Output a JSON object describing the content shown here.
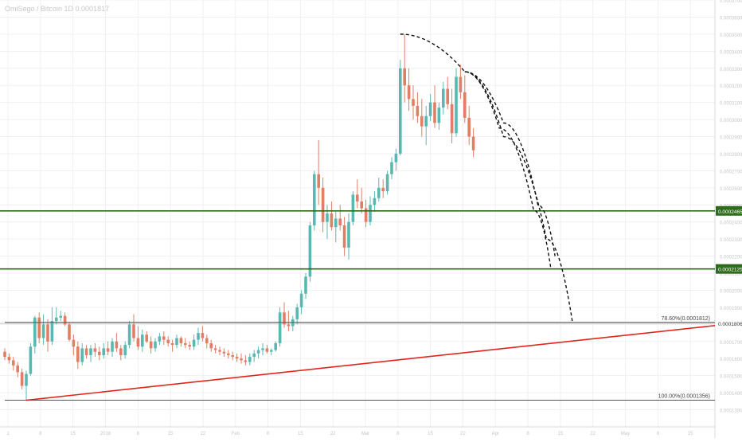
{
  "header": {
    "symbol_title": "OmiSego / Bitcoin 1D 0.0001817"
  },
  "colors": {
    "bull": "#59b9b2",
    "bear": "#e07f66",
    "support": "#2e6b1b",
    "trendline": "#e1261d",
    "fib": "#555555",
    "grid": "#f0f0f0",
    "price_line": "#c4c4c4",
    "projection": "#111111"
  },
  "chart_data": {
    "type": "candlestick",
    "title": "",
    "xlabel": "",
    "ylabel": "",
    "ylim": [
      0.00012,
      0.00037
    ],
    "y_tick_step": 1e-05,
    "grid": true,
    "x_tick_labels": [
      "1",
      "8",
      "15",
      "2018",
      "8",
      "15",
      "22",
      "Feb",
      "8",
      "15",
      "22",
      "Mar",
      "8",
      "15",
      "22",
      "Apr",
      "8",
      "15",
      "22",
      "May",
      "8",
      "15"
    ],
    "candles": [
      {
        "o": 0.000164,
        "h": 0.000166,
        "l": 0.000159,
        "c": 0.000161
      },
      {
        "o": 0.000161,
        "h": 0.000163,
        "l": 0.000157,
        "c": 0.000159
      },
      {
        "o": 0.000159,
        "h": 0.000161,
        "l": 0.000153,
        "c": 0.000156
      },
      {
        "o": 0.000156,
        "h": 0.000158,
        "l": 0.000149,
        "c": 0.000152
      },
      {
        "o": 0.000152,
        "h": 0.000154,
        "l": 0.000142,
        "c": 0.000144
      },
      {
        "o": 0.000144,
        "h": 0.000153,
        "l": 0.0001356,
        "c": 0.000151
      },
      {
        "o": 0.000151,
        "h": 0.000169,
        "l": 0.00015,
        "c": 0.000167
      },
      {
        "o": 0.000167,
        "h": 0.000185,
        "l": 0.000163,
        "c": 0.000184
      },
      {
        "o": 0.000184,
        "h": 0.000187,
        "l": 0.000169,
        "c": 0.000172
      },
      {
        "o": 0.000172,
        "h": 0.000186,
        "l": 0.000168,
        "c": 0.00018
      },
      {
        "o": 0.00018,
        "h": 0.000183,
        "l": 0.000164,
        "c": 0.00017
      },
      {
        "o": 0.00017,
        "h": 0.00019,
        "l": 0.000168,
        "c": 0.000182
      },
      {
        "o": 0.000182,
        "h": 0.00019,
        "l": 0.00018,
        "c": 0.000184
      },
      {
        "o": 0.000184,
        "h": 0.000188,
        "l": 0.000182,
        "c": 0.000185
      },
      {
        "o": 0.000185,
        "h": 0.000187,
        "l": 0.000179,
        "c": 0.00018
      },
      {
        "o": 0.00018,
        "h": 0.000181,
        "l": 0.00017,
        "c": 0.000171
      },
      {
        "o": 0.000171,
        "h": 0.000174,
        "l": 0.000162,
        "c": 0.000167
      },
      {
        "o": 0.000167,
        "h": 0.00017,
        "l": 0.000154,
        "c": 0.000158
      },
      {
        "o": 0.000158,
        "h": 0.000169,
        "l": 0.000156,
        "c": 0.000166
      },
      {
        "o": 0.000166,
        "h": 0.000168,
        "l": 0.00016,
        "c": 0.000162
      },
      {
        "o": 0.000162,
        "h": 0.000168,
        "l": 0.000158,
        "c": 0.000166
      },
      {
        "o": 0.000166,
        "h": 0.000169,
        "l": 0.000161,
        "c": 0.000164
      },
      {
        "o": 0.000164,
        "h": 0.000167,
        "l": 0.000159,
        "c": 0.000162
      },
      {
        "o": 0.000162,
        "h": 0.000169,
        "l": 0.00016,
        "c": 0.000166
      },
      {
        "o": 0.000166,
        "h": 0.00017,
        "l": 0.000162,
        "c": 0.000164
      },
      {
        "o": 0.000164,
        "h": 0.000172,
        "l": 0.000161,
        "c": 0.00017
      },
      {
        "o": 0.00017,
        "h": 0.000175,
        "l": 0.000164,
        "c": 0.000166
      },
      {
        "o": 0.000166,
        "h": 0.000168,
        "l": 0.000159,
        "c": 0.000162
      },
      {
        "o": 0.000162,
        "h": 0.00017,
        "l": 0.00016,
        "c": 0.000168
      },
      {
        "o": 0.000168,
        "h": 0.000182,
        "l": 0.000166,
        "c": 0.00018
      },
      {
        "o": 0.00018,
        "h": 0.000186,
        "l": 0.00017,
        "c": 0.000172
      },
      {
        "o": 0.000172,
        "h": 0.000179,
        "l": 0.000165,
        "c": 0.000167
      },
      {
        "o": 0.000167,
        "h": 0.000177,
        "l": 0.000164,
        "c": 0.000174
      },
      {
        "o": 0.000174,
        "h": 0.000176,
        "l": 0.000169,
        "c": 0.00017
      },
      {
        "o": 0.00017,
        "h": 0.000173,
        "l": 0.000163,
        "c": 0.000166
      },
      {
        "o": 0.000166,
        "h": 0.000172,
        "l": 0.000164,
        "c": 0.00017
      },
      {
        "o": 0.00017,
        "h": 0.000175,
        "l": 0.000168,
        "c": 0.000173
      },
      {
        "o": 0.000173,
        "h": 0.000176,
        "l": 0.000168,
        "c": 0.000171
      },
      {
        "o": 0.000171,
        "h": 0.000173,
        "l": 0.000167,
        "c": 0.000169
      },
      {
        "o": 0.000169,
        "h": 0.000171,
        "l": 0.000164,
        "c": 0.000168
      },
      {
        "o": 0.000168,
        "h": 0.000174,
        "l": 0.000166,
        "c": 0.000172
      },
      {
        "o": 0.000172,
        "h": 0.000173,
        "l": 0.000167,
        "c": 0.000169
      },
      {
        "o": 0.000169,
        "h": 0.000172,
        "l": 0.000166,
        "c": 0.000168
      },
      {
        "o": 0.000168,
        "h": 0.00017,
        "l": 0.000165,
        "c": 0.000167
      },
      {
        "o": 0.000167,
        "h": 0.000174,
        "l": 0.000165,
        "c": 0.000171
      },
      {
        "o": 0.000171,
        "h": 0.000178,
        "l": 0.000168,
        "c": 0.000175
      },
      {
        "o": 0.000175,
        "h": 0.000179,
        "l": 0.00017,
        "c": 0.000172
      },
      {
        "o": 0.000172,
        "h": 0.000174,
        "l": 0.000166,
        "c": 0.000169
      },
      {
        "o": 0.000169,
        "h": 0.000171,
        "l": 0.000164,
        "c": 0.000166
      },
      {
        "o": 0.000166,
        "h": 0.000168,
        "l": 0.000163,
        "c": 0.000165
      },
      {
        "o": 0.000165,
        "h": 0.000167,
        "l": 0.000162,
        "c": 0.000164
      },
      {
        "o": 0.000164,
        "h": 0.000166,
        "l": 0.000161,
        "c": 0.000163
      },
      {
        "o": 0.000163,
        "h": 0.000165,
        "l": 0.00016,
        "c": 0.000162
      },
      {
        "o": 0.000162,
        "h": 0.000164,
        "l": 0.000159,
        "c": 0.000161
      },
      {
        "o": 0.000161,
        "h": 0.000163,
        "l": 0.000158,
        "c": 0.00016
      },
      {
        "o": 0.00016,
        "h": 0.000163,
        "l": 0.000157,
        "c": 0.000159
      },
      {
        "o": 0.000159,
        "h": 0.000162,
        "l": 0.000156,
        "c": 0.000158
      },
      {
        "o": 0.000158,
        "h": 0.000163,
        "l": 0.000156,
        "c": 0.000161
      },
      {
        "o": 0.000161,
        "h": 0.000165,
        "l": 0.000158,
        "c": 0.000163
      },
      {
        "o": 0.000163,
        "h": 0.000167,
        "l": 0.00016,
        "c": 0.000165
      },
      {
        "o": 0.000165,
        "h": 0.000169,
        "l": 0.000162,
        "c": 0.000166
      },
      {
        "o": 0.000166,
        "h": 0.000168,
        "l": 0.000163,
        "c": 0.000164
      },
      {
        "o": 0.000164,
        "h": 0.000166,
        "l": 0.000162,
        "c": 0.000165
      },
      {
        "o": 0.000165,
        "h": 0.00017,
        "l": 0.000164,
        "c": 0.000169
      },
      {
        "o": 0.000169,
        "h": 0.00019,
        "l": 0.000167,
        "c": 0.000187
      },
      {
        "o": 0.000187,
        "h": 0.000193,
        "l": 0.000178,
        "c": 0.00018
      },
      {
        "o": 0.00018,
        "h": 0.000188,
        "l": 0.000176,
        "c": 0.000179
      },
      {
        "o": 0.000179,
        "h": 0.000185,
        "l": 0.000176,
        "c": 0.000183
      },
      {
        "o": 0.000183,
        "h": 0.000192,
        "l": 0.00018,
        "c": 0.00019
      },
      {
        "o": 0.00019,
        "h": 0.0002,
        "l": 0.000186,
        "c": 0.000198
      },
      {
        "o": 0.000198,
        "h": 0.00021,
        "l": 0.000195,
        "c": 0.000208
      },
      {
        "o": 0.000208,
        "h": 0.00024,
        "l": 0.000205,
        "c": 0.000238
      },
      {
        "o": 0.000238,
        "h": 0.00027,
        "l": 0.000235,
        "c": 0.000268
      },
      {
        "o": 0.000268,
        "h": 0.000288,
        "l": 0.00025,
        "c": 0.00026
      },
      {
        "o": 0.00026,
        "h": 0.000266,
        "l": 0.000234,
        "c": 0.00024
      },
      {
        "o": 0.00024,
        "h": 0.00025,
        "l": 0.00023,
        "c": 0.000245
      },
      {
        "o": 0.000245,
        "h": 0.000252,
        "l": 0.000235,
        "c": 0.000237
      },
      {
        "o": 0.000237,
        "h": 0.000246,
        "l": 0.000228,
        "c": 0.000242
      },
      {
        "o": 0.000242,
        "h": 0.00025,
        "l": 0.000235,
        "c": 0.000238
      },
      {
        "o": 0.000238,
        "h": 0.000243,
        "l": 0.00022,
        "c": 0.000225
      },
      {
        "o": 0.000225,
        "h": 0.000245,
        "l": 0.000218,
        "c": 0.00024
      },
      {
        "o": 0.00024,
        "h": 0.000258,
        "l": 0.000238,
        "c": 0.000256
      },
      {
        "o": 0.000256,
        "h": 0.000265,
        "l": 0.000248,
        "c": 0.000252
      },
      {
        "o": 0.000252,
        "h": 0.00026,
        "l": 0.000245,
        "c": 0.000248
      },
      {
        "o": 0.000248,
        "h": 0.000253,
        "l": 0.000237,
        "c": 0.00024
      },
      {
        "o": 0.00024,
        "h": 0.000255,
        "l": 0.000238,
        "c": 0.00025
      },
      {
        "o": 0.00025,
        "h": 0.000258,
        "l": 0.000246,
        "c": 0.000254
      },
      {
        "o": 0.000254,
        "h": 0.000266,
        "l": 0.000252,
        "c": 0.00026
      },
      {
        "o": 0.00026,
        "h": 0.000265,
        "l": 0.000254,
        "c": 0.000258
      },
      {
        "o": 0.000258,
        "h": 0.00027,
        "l": 0.000256,
        "c": 0.000268
      },
      {
        "o": 0.000268,
        "h": 0.000278,
        "l": 0.000265,
        "c": 0.000275
      },
      {
        "o": 0.000275,
        "h": 0.000283,
        "l": 0.00027,
        "c": 0.00028
      },
      {
        "o": 0.00028,
        "h": 0.000335,
        "l": 0.000279,
        "c": 0.00033
      },
      {
        "o": 0.00033,
        "h": 0.00035,
        "l": 0.00031,
        "c": 0.00032
      },
      {
        "o": 0.00032,
        "h": 0.00033,
        "l": 0.000305,
        "c": 0.000312
      },
      {
        "o": 0.000312,
        "h": 0.00032,
        "l": 0.0003,
        "c": 0.000308
      },
      {
        "o": 0.000308,
        "h": 0.000316,
        "l": 0.000298,
        "c": 0.000302
      },
      {
        "o": 0.000302,
        "h": 0.000312,
        "l": 0.00029,
        "c": 0.000296
      },
      {
        "o": 0.000296,
        "h": 0.000308,
        "l": 0.000285,
        "c": 0.000302
      },
      {
        "o": 0.000302,
        "h": 0.000315,
        "l": 0.000299,
        "c": 0.00031
      },
      {
        "o": 0.00031,
        "h": 0.00032,
        "l": 0.000295,
        "c": 0.000298
      },
      {
        "o": 0.000298,
        "h": 0.00031,
        "l": 0.000294,
        "c": 0.000307
      },
      {
        "o": 0.000307,
        "h": 0.000322,
        "l": 0.000303,
        "c": 0.000318
      },
      {
        "o": 0.000318,
        "h": 0.000325,
        "l": 0.000306,
        "c": 0.000309
      },
      {
        "o": 0.000309,
        "h": 0.000318,
        "l": 0.000286,
        "c": 0.000292
      },
      {
        "o": 0.000292,
        "h": 0.00033,
        "l": 0.00029,
        "c": 0.000325
      },
      {
        "o": 0.000325,
        "h": 0.000332,
        "l": 0.000312,
        "c": 0.000316
      },
      {
        "o": 0.000316,
        "h": 0.000326,
        "l": 0.000298,
        "c": 0.000301
      },
      {
        "o": 0.000301,
        "h": 0.000308,
        "l": 0.000285,
        "c": 0.00029
      },
      {
        "o": 0.00029,
        "h": 0.000295,
        "l": 0.000278,
        "c": 0.000282
      }
    ],
    "current_price": 0.0001806,
    "current_price_label": "0.0001806",
    "levels": [
      {
        "price": 0.0002465,
        "label": "0.0002465"
      },
      {
        "price": 0.0002125,
        "label": "0.0002125"
      }
    ],
    "fib_levels": [
      {
        "price": 0.0001812,
        "label": "78.60%(0.0001812)"
      },
      {
        "price": 0.0001356,
        "label": "100.00%(0.0001356)"
      }
    ],
    "trendline": {
      "start": {
        "bar": 5,
        "price": 0.0001356
      },
      "end": {
        "bar": 172,
        "price": 0.0001812
      }
    },
    "projections": [
      {
        "name": "arc-1",
        "points": [
          [
            92,
            0.00035
          ],
          [
            107,
            0.000328
          ],
          [
            115,
            0.000295
          ],
          [
            123,
            0.000247
          ],
          [
            127,
            0.000213
          ]
        ]
      },
      {
        "name": "arc-2",
        "points": [
          [
            107,
            0.000328
          ],
          [
            116,
            0.00029
          ],
          [
            126,
            0.00023
          ],
          [
            132,
            0.000182
          ]
        ]
      },
      {
        "name": "arc-3",
        "points": [
          [
            107,
            0.000328
          ],
          [
            116,
            0.000298
          ],
          [
            124,
            0.00025
          ],
          [
            128,
            0.00022
          ]
        ]
      }
    ]
  }
}
